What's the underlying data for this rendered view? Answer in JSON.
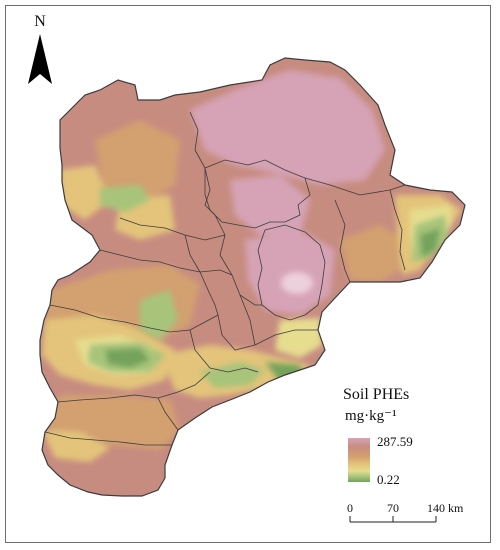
{
  "map": {
    "north_label": "N",
    "legend": {
      "title": "Soil PHEs",
      "unit": "mg·kg⁻¹",
      "max_label": "287.59",
      "min_label": "0.22",
      "ramp_colors": [
        "#d6a3b6",
        "#c78c80",
        "#d3a06f",
        "#e3c47a",
        "#e6dd8f",
        "#a7c47a",
        "#74a35c"
      ]
    },
    "scale_bar": {
      "ticks": [
        "0",
        "70",
        "140"
      ],
      "unit": "km"
    },
    "palette": {
      "very_high": "#d6a3b6",
      "high": "#c78c80",
      "mid_high": "#d3a06f",
      "mid": "#e3c47a",
      "mid_low": "#e6dd8f",
      "low": "#a7c47a",
      "very_low": "#74a35c",
      "boundary": "#3c3c3c"
    }
  }
}
